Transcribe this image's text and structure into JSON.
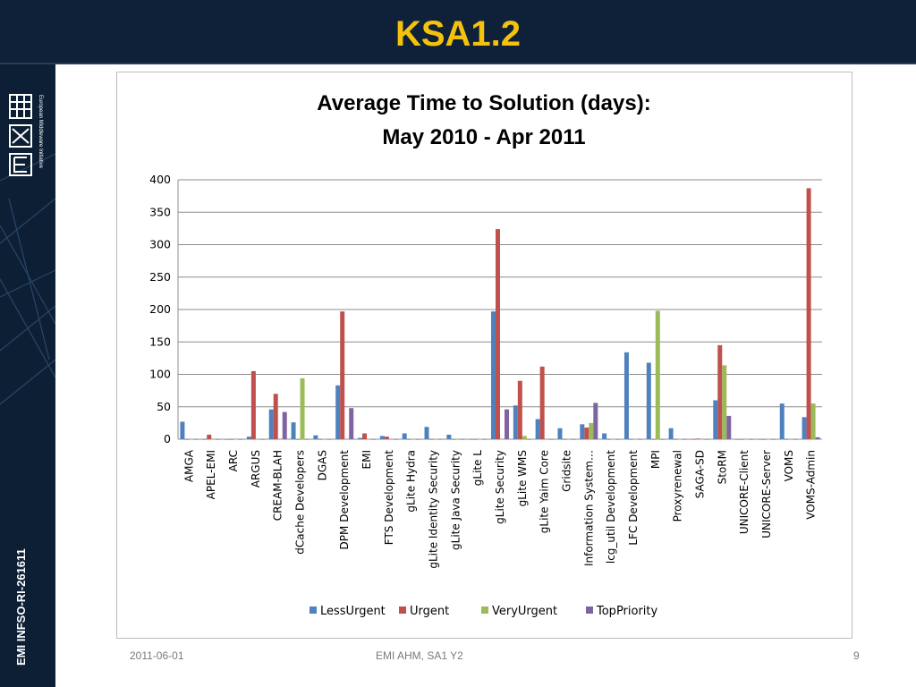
{
  "slide": {
    "title": "KSA1.2",
    "vertical_label": "EMI INFSO-RI-261611",
    "logo_text": "European Middleware Initiative",
    "footer_date": "2011-06-01",
    "footer_center": "EMI AHM, SA1 Y2",
    "page_number": "9"
  },
  "colors": {
    "header_bg": "#0e2138",
    "title": "#f4c20d",
    "LessUrgent": "#4f81bd",
    "Urgent": "#c0504d",
    "VeryUrgent": "#9bbb59",
    "TopPriority": "#8064a2"
  },
  "chart_data": {
    "type": "bar",
    "title_lines": [
      "Average Time to Solution (days):",
      "May 2010 - Apr 2011"
    ],
    "xlabel": "",
    "ylabel": "",
    "ylim": [
      0,
      400
    ],
    "yticks": [
      0,
      50,
      100,
      150,
      200,
      250,
      300,
      350,
      400
    ],
    "legend_position": "bottom",
    "grid": "horizontal",
    "categories": [
      "AMGA",
      "APEL-EMI",
      "ARC",
      "ARGUS",
      "CREAM-BLAH",
      "dCache Developers",
      "DGAS",
      "DPM Development",
      "EMI",
      "FTS Development",
      "gLite Hydra",
      "gLite Identity Security",
      "gLite Java Security",
      "gLite L",
      "gLite Security",
      "gLite WMS",
      "gLite Yaim Core",
      "Gridsite",
      "Information System…",
      "lcg_util Development",
      "LFC Development",
      "MPI",
      "Proxyrenewal",
      "SAGA-SD",
      "StoRM",
      "UNICORE-Client",
      "UNICORE-Server",
      "VOMS",
      "VOMS-Admin"
    ],
    "series": [
      {
        "name": "LessUrgent",
        "values": [
          27,
          0,
          0,
          4,
          46,
          26,
          6,
          83,
          2,
          5,
          9,
          19,
          7,
          0,
          197,
          52,
          31,
          17,
          23,
          9,
          134,
          118,
          17,
          0,
          60,
          0,
          0,
          55,
          34
        ]
      },
      {
        "name": "Urgent",
        "values": [
          0,
          7,
          0,
          105,
          70,
          0,
          0,
          197,
          9,
          4,
          0,
          0,
          0,
          0,
          324,
          90,
          112,
          0,
          18,
          0,
          0,
          0,
          0,
          1,
          145,
          0,
          0,
          0,
          387
        ]
      },
      {
        "name": "VeryUrgent",
        "values": [
          0,
          0,
          0,
          0,
          0,
          94,
          0,
          0,
          0,
          0,
          0,
          0,
          0,
          0,
          0,
          5,
          0,
          0,
          25,
          0,
          0,
          198,
          0,
          0,
          114,
          0,
          0,
          0,
          55
        ]
      },
      {
        "name": "TopPriority",
        "values": [
          0,
          0,
          0,
          0,
          42,
          0,
          0,
          48,
          0,
          0,
          0,
          0,
          0,
          0,
          46,
          0,
          0,
          0,
          56,
          0,
          0,
          0,
          0,
          0,
          36,
          0,
          0,
          0,
          3
        ]
      }
    ]
  }
}
